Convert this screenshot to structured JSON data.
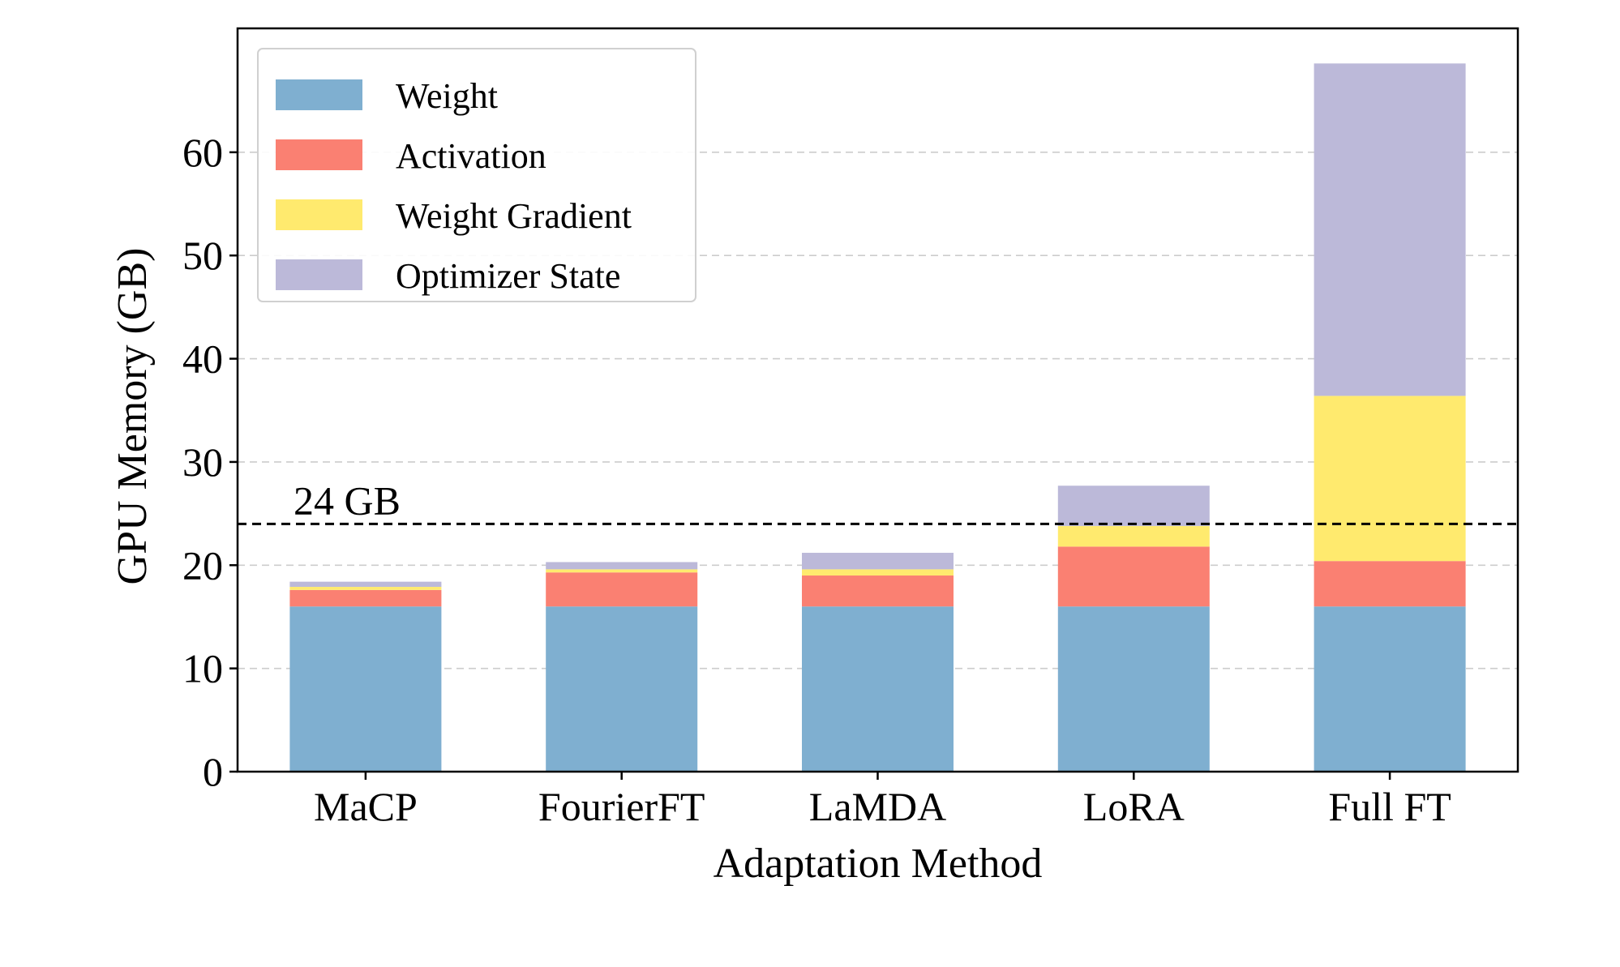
{
  "chart_data": {
    "type": "bar",
    "stacked": true,
    "title": "",
    "xlabel": "Adaptation Method",
    "ylabel": "GPU Memory (GB)",
    "ylim": [
      0,
      72
    ],
    "yticks": [
      0,
      10,
      20,
      30,
      40,
      50,
      60
    ],
    "grid": "y-dashed",
    "legend_position": "top-left",
    "categories": [
      "MaCP",
      "FourierFT",
      "LaMDA",
      "LoRA",
      "Full FT"
    ],
    "series": [
      {
        "name": "Weight",
        "color": "#7FAFD0",
        "values": [
          16.0,
          16.0,
          16.0,
          16.0,
          16.0
        ]
      },
      {
        "name": "Activation",
        "color": "#FA8072",
        "values": [
          1.6,
          3.3,
          3.0,
          5.8,
          4.4
        ]
      },
      {
        "name": "Weight Gradient",
        "color": "#FFEA6E",
        "values": [
          0.3,
          0.3,
          0.6,
          2.0,
          16.0
        ]
      },
      {
        "name": "Optimizer State",
        "color": "#BCB9D9",
        "values": [
          0.5,
          0.7,
          1.6,
          3.9,
          32.2
        ]
      }
    ],
    "reference_line": {
      "value": 24,
      "label": "24 GB",
      "style": "dashed",
      "color": "#000000"
    }
  }
}
